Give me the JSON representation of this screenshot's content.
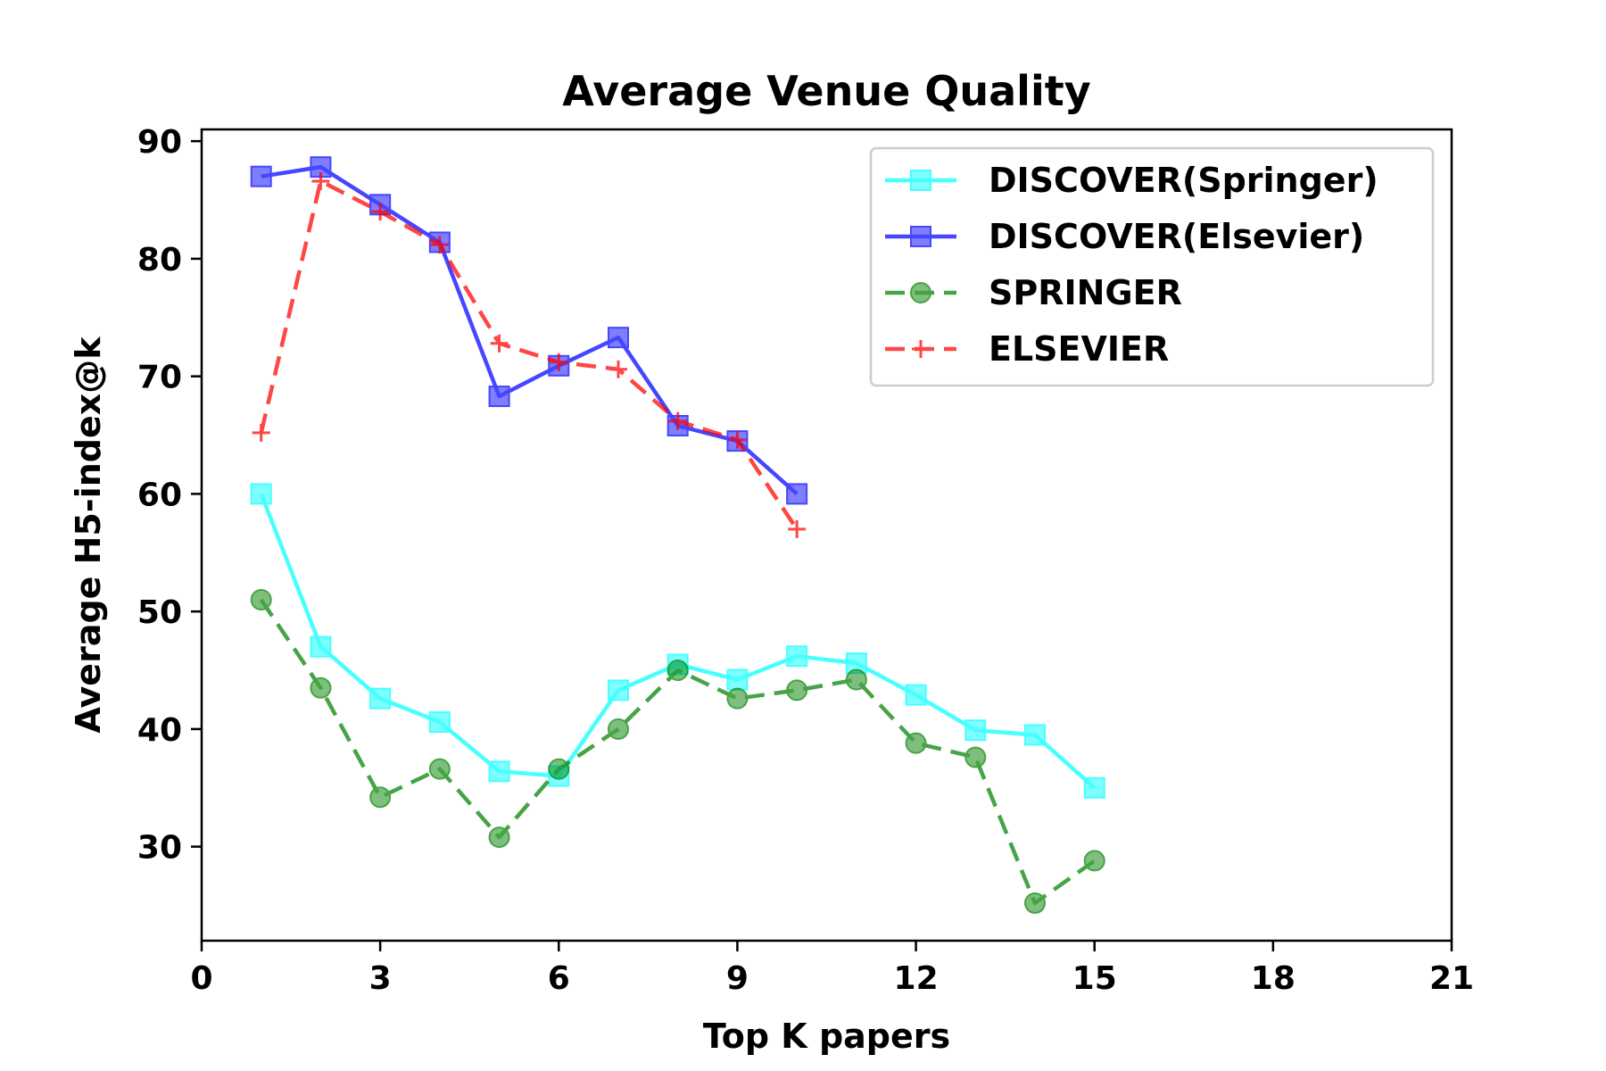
{
  "chart_data": {
    "type": "line",
    "title": "Average Venue Quality",
    "xlabel": "Top K papers",
    "ylabel": "Average H5-index@k",
    "xlim": [
      0,
      21
    ],
    "ylim": [
      22,
      91
    ],
    "xticks": [
      0,
      3,
      6,
      9,
      12,
      15,
      18,
      21
    ],
    "yticks": [
      30,
      40,
      50,
      60,
      70,
      80,
      90
    ],
    "grid": false,
    "legend_position": "top-right",
    "series": [
      {
        "name": "DISCOVER(Springer)",
        "color": "#00ffff",
        "marker": "square",
        "line_style": "solid",
        "x": [
          1,
          2,
          3,
          4,
          5,
          6,
          7,
          8,
          9,
          10,
          11,
          12,
          13,
          14,
          15
        ],
        "y": [
          60,
          47,
          42.6,
          40.6,
          36.4,
          36,
          43.3,
          45.5,
          44.2,
          46.2,
          45.6,
          42.9,
          39.9,
          39.5,
          35
        ]
      },
      {
        "name": "DISCOVER(Elsevier)",
        "color": "#0000ff",
        "marker": "square",
        "line_style": "solid",
        "x": [
          1,
          2,
          3,
          4,
          5,
          6,
          7,
          8,
          9,
          10
        ],
        "y": [
          87,
          87.8,
          84.6,
          81.4,
          68.3,
          70.9,
          73.3,
          65.8,
          64.5,
          60
        ]
      },
      {
        "name": "SPRINGER",
        "color": "#008000",
        "marker": "circle",
        "line_style": "dashed",
        "x": [
          1,
          2,
          3,
          4,
          5,
          6,
          7,
          8,
          9,
          10,
          11,
          12,
          13,
          14,
          15
        ],
        "y": [
          51,
          43.5,
          34.2,
          36.6,
          30.8,
          36.6,
          40,
          45,
          42.6,
          43.3,
          44.2,
          38.8,
          37.6,
          25.2,
          28.8
        ]
      },
      {
        "name": "ELSEVIER",
        "color": "#ff0000",
        "marker": "plus",
        "line_style": "dashed",
        "x": [
          1,
          2,
          3,
          4,
          5,
          6,
          7,
          8,
          9,
          10
        ],
        "y": [
          65.2,
          86.6,
          84,
          81.2,
          72.8,
          71.2,
          70.6,
          66.2,
          64.6,
          57
        ]
      }
    ]
  }
}
